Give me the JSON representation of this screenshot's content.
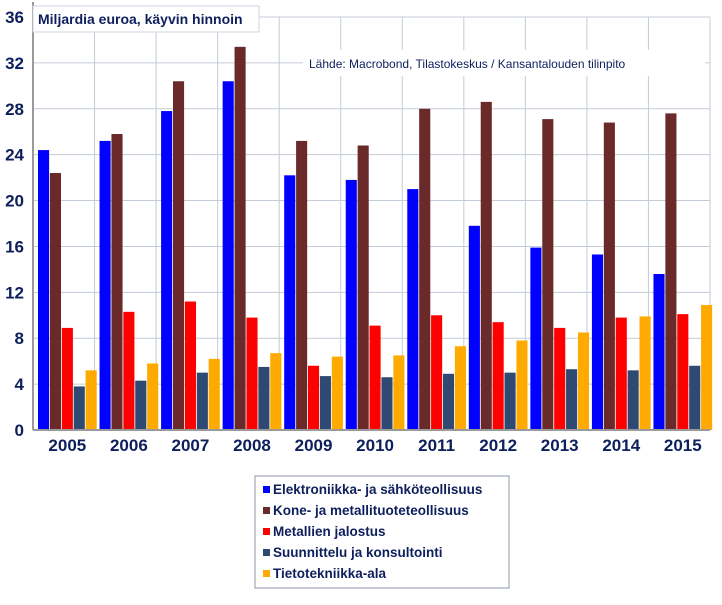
{
  "chart_data": {
    "type": "bar",
    "title": "Miljardia euroa, käyvin hinnoin",
    "source_note": "Lähde: Macrobond, Tilastokeskus / Kansantalouden tilinpito",
    "categories": [
      "2005",
      "2006",
      "2007",
      "2008",
      "2009",
      "2010",
      "2011",
      "2012",
      "2013",
      "2014",
      "2015"
    ],
    "ylim": [
      0,
      36
    ],
    "yticks": [
      "0",
      "4",
      "8",
      "12",
      "16",
      "20",
      "24",
      "28",
      "32",
      "36"
    ],
    "grid": true,
    "legend_position": "bottom-center",
    "series": [
      {
        "name": "Elektroniikka- ja sähköteollisuus",
        "color": "#0000ff",
        "values": [
          24.4,
          25.2,
          27.8,
          30.4,
          22.2,
          21.8,
          21.0,
          17.8,
          15.9,
          15.3,
          13.6
        ]
      },
      {
        "name": "Kone- ja metallituoteteollisuus",
        "color": "#6b2a2a",
        "values": [
          22.4,
          25.8,
          30.4,
          33.4,
          25.2,
          24.8,
          28.0,
          28.6,
          27.1,
          26.8,
          27.6
        ]
      },
      {
        "name": "Metallien jalostus",
        "color": "#ff0000",
        "values": [
          8.9,
          10.3,
          11.2,
          9.8,
          5.6,
          9.1,
          10.0,
          9.4,
          8.9,
          9.8,
          10.1
        ]
      },
      {
        "name": "Suunnittelu ja konsultointi",
        "color": "#2e4a73",
        "values": [
          3.8,
          4.3,
          5.0,
          5.5,
          4.7,
          4.6,
          4.9,
          5.0,
          5.3,
          5.2,
          5.6
        ]
      },
      {
        "name": "Tietotekniikka-ala",
        "color": "#ffaa00",
        "values": [
          5.2,
          5.8,
          6.2,
          6.7,
          6.4,
          6.5,
          7.3,
          7.8,
          8.5,
          9.9,
          10.9
        ]
      }
    ]
  }
}
